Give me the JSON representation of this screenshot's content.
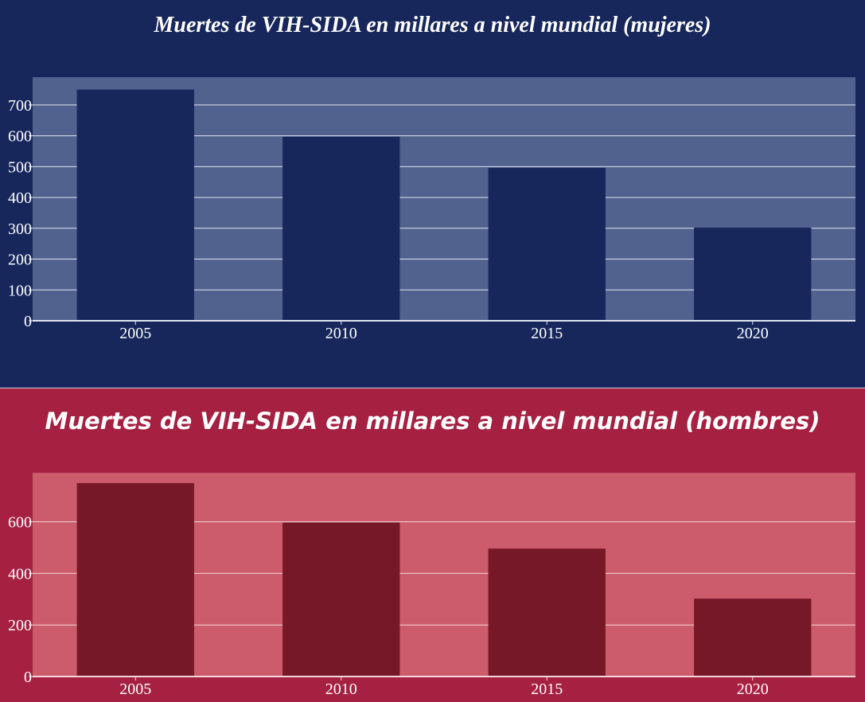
{
  "chart_data": [
    {
      "type": "bar",
      "title": "Muertes de VIH-SIDA en millares a nivel mundial (mujeres)",
      "categories": [
        "2005",
        "2010",
        "2015",
        "2020"
      ],
      "values": [
        750,
        597,
        496,
        302
      ],
      "ylim": [
        0,
        790
      ],
      "yticks": [
        0,
        100,
        200,
        300,
        400,
        500,
        600,
        700
      ],
      "grid": true,
      "colors": {
        "background": "#17275c",
        "plot": "#51628e",
        "bar": "#17275c",
        "grid": "#dfe3ee"
      }
    },
    {
      "type": "bar",
      "title": "Muertes de VIH-SIDA en millares a nivel mundial (hombres)",
      "categories": [
        "2005",
        "2010",
        "2015",
        "2020"
      ],
      "values": [
        750,
        597,
        496,
        302
      ],
      "ylim": [
        0,
        790
      ],
      "yticks": [
        0,
        200,
        400,
        600
      ],
      "grid": true,
      "colors": {
        "background": "#a52041",
        "plot": "#cc5c6b",
        "bar": "#771829",
        "grid": "#f2d6da"
      }
    }
  ]
}
